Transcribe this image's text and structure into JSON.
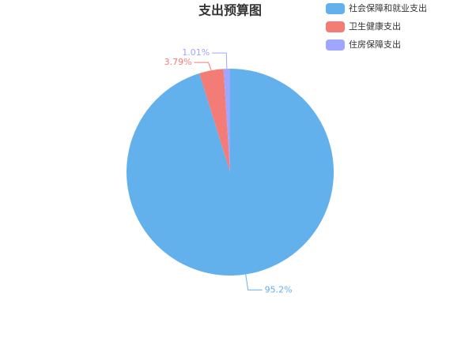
{
  "chart_data": {
    "type": "pie",
    "title": "支出预算图",
    "categories": [
      "社会保障和就业支出",
      "卫生健康支出",
      "住房保障支出"
    ],
    "values": [
      95.2,
      3.79,
      1.01
    ],
    "value_labels": [
      "95.2%",
      "3.79%",
      "1.01%"
    ],
    "colors": [
      "#62b0ec",
      "#f47c76",
      "#9ea6ff"
    ],
    "legend": "top-right"
  }
}
